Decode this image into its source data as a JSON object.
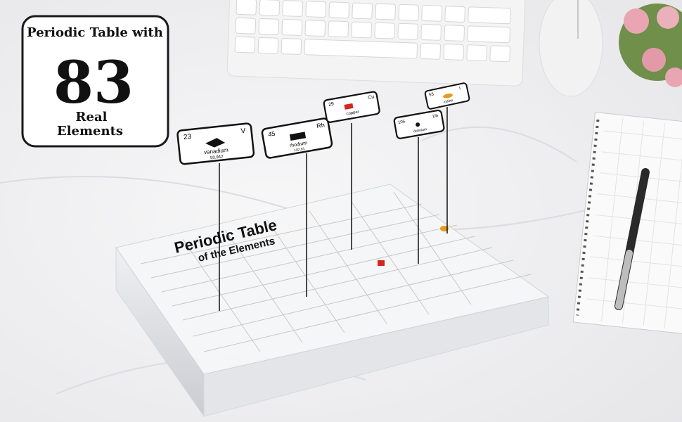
{
  "badge": {
    "line1": "Periodic Table with",
    "number": "83",
    "line2": "Real",
    "line3": "Elements"
  },
  "block_title": {
    "line1": "Periodic Table",
    "line2": "of the Elements"
  },
  "tiles": [
    {
      "number": "23",
      "symbol": "V",
      "name": "vanadium",
      "mass": "50.942"
    },
    {
      "number": "45",
      "symbol": "Rh",
      "name": "rhodium",
      "mass": "102.91"
    },
    {
      "number": "29",
      "symbol": "Cu",
      "name": "copper"
    },
    {
      "number": "105",
      "symbol": "Db",
      "name": "dubnium"
    },
    {
      "number": "53",
      "symbol": "I",
      "name": "iodine"
    }
  ]
}
